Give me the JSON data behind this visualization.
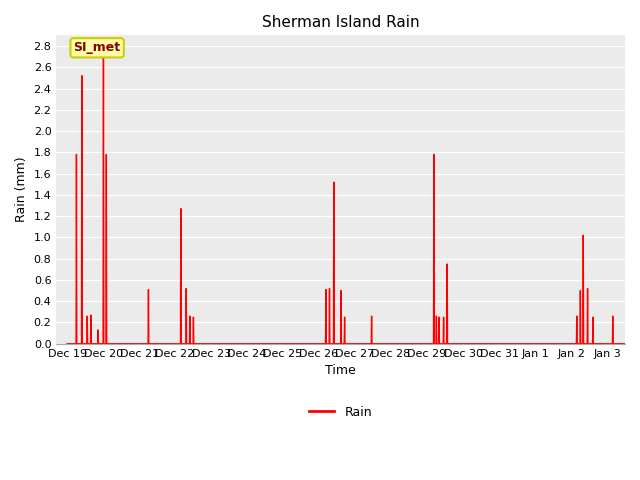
{
  "title": "Sherman Island Rain",
  "xlabel": "Time",
  "ylabel": "Rain (mm)",
  "legend_label": "Rain",
  "annotation_text": "SI_met",
  "line_color": "#FF0000",
  "plot_bg_color": "#EBEBEB",
  "fig_bg_color": "#FFFFFF",
  "ylim": [
    0.0,
    2.9
  ],
  "yticks": [
    0.0,
    0.2,
    0.4,
    0.6,
    0.8,
    1.0,
    1.2,
    1.4,
    1.6,
    1.8,
    2.0,
    2.2,
    2.4,
    2.6,
    2.8
  ],
  "x_tick_labels": [
    "Dec 19",
    "Dec 20",
    "Dec 21",
    "Dec 22",
    "Dec 23",
    "Dec 24",
    "Dec 25",
    "Dec 26",
    "Dec 27",
    "Dec 28",
    "Dec 29",
    "Dec 30",
    "Dec 31",
    "Jan 1",
    "Jan 2",
    "Jan 3"
  ],
  "x_tick_positions": [
    0,
    1,
    2,
    3,
    4,
    5,
    6,
    7,
    8,
    9,
    10,
    11,
    12,
    13,
    14,
    15
  ],
  "title_fontsize": 11,
  "axis_label_fontsize": 9,
  "tick_fontsize": 8,
  "data_points": [
    [
      0.0,
      0.0
    ],
    [
      0.25,
      0.0
    ],
    [
      0.26,
      1.78
    ],
    [
      0.27,
      0.0
    ],
    [
      0.4,
      0.0
    ],
    [
      0.41,
      2.52
    ],
    [
      0.42,
      0.0
    ],
    [
      0.55,
      0.0
    ],
    [
      0.56,
      0.26
    ],
    [
      0.57,
      0.0
    ],
    [
      0.65,
      0.0
    ],
    [
      0.66,
      0.27
    ],
    [
      0.67,
      0.0
    ],
    [
      0.85,
      0.0
    ],
    [
      0.86,
      0.13
    ],
    [
      0.87,
      0.0
    ],
    [
      1.0,
      0.0
    ],
    [
      1.01,
      2.85
    ],
    [
      1.02,
      0.0
    ],
    [
      1.08,
      0.0
    ],
    [
      1.09,
      1.78
    ],
    [
      1.1,
      0.0
    ],
    [
      1.3,
      0.0
    ],
    [
      1.7,
      0.0
    ],
    [
      2.0,
      0.0
    ],
    [
      2.25,
      0.0
    ],
    [
      2.26,
      0.51
    ],
    [
      2.27,
      0.0
    ],
    [
      2.7,
      0.0
    ],
    [
      3.0,
      0.0
    ],
    [
      3.15,
      0.0
    ],
    [
      3.16,
      1.27
    ],
    [
      3.17,
      0.0
    ],
    [
      3.3,
      0.0
    ],
    [
      3.31,
      0.52
    ],
    [
      3.32,
      0.0
    ],
    [
      3.4,
      0.0
    ],
    [
      3.41,
      0.26
    ],
    [
      3.42,
      0.0
    ],
    [
      3.5,
      0.0
    ],
    [
      3.51,
      0.25
    ],
    [
      3.52,
      0.0
    ],
    [
      4.0,
      0.0
    ],
    [
      5.0,
      0.0
    ],
    [
      6.0,
      0.0
    ],
    [
      7.0,
      0.0
    ],
    [
      7.18,
      0.0
    ],
    [
      7.19,
      0.51
    ],
    [
      7.2,
      0.0
    ],
    [
      7.28,
      0.0
    ],
    [
      7.29,
      0.52
    ],
    [
      7.3,
      0.0
    ],
    [
      7.4,
      0.0
    ],
    [
      7.41,
      1.52
    ],
    [
      7.42,
      0.0
    ],
    [
      7.6,
      0.0
    ],
    [
      7.61,
      0.5
    ],
    [
      7.62,
      0.0
    ],
    [
      7.7,
      0.0
    ],
    [
      7.71,
      0.25
    ],
    [
      7.72,
      0.0
    ],
    [
      8.0,
      0.0
    ],
    [
      8.45,
      0.0
    ],
    [
      8.46,
      0.26
    ],
    [
      8.47,
      0.0
    ],
    [
      9.0,
      0.0
    ],
    [
      10.0,
      0.0
    ],
    [
      10.18,
      0.0
    ],
    [
      10.19,
      1.78
    ],
    [
      10.2,
      0.0
    ],
    [
      10.25,
      0.0
    ],
    [
      10.26,
      0.26
    ],
    [
      10.27,
      0.0
    ],
    [
      10.32,
      0.0
    ],
    [
      10.33,
      0.25
    ],
    [
      10.34,
      0.0
    ],
    [
      10.45,
      0.0
    ],
    [
      10.46,
      0.25
    ],
    [
      10.47,
      0.0
    ],
    [
      10.55,
      0.0
    ],
    [
      10.56,
      0.75
    ],
    [
      10.57,
      0.0
    ],
    [
      11.0,
      0.0
    ],
    [
      12.0,
      0.0
    ],
    [
      13.0,
      0.0
    ],
    [
      14.0,
      0.0
    ],
    [
      14.15,
      0.0
    ],
    [
      14.16,
      0.26
    ],
    [
      14.17,
      0.0
    ],
    [
      14.25,
      0.0
    ],
    [
      14.26,
      0.5
    ],
    [
      14.27,
      0.0
    ],
    [
      14.33,
      0.0
    ],
    [
      14.34,
      1.02
    ],
    [
      14.35,
      0.0
    ],
    [
      14.45,
      0.0
    ],
    [
      14.46,
      0.52
    ],
    [
      14.47,
      0.0
    ],
    [
      14.6,
      0.0
    ],
    [
      14.61,
      0.25
    ],
    [
      14.62,
      0.0
    ],
    [
      15.0,
      0.0
    ],
    [
      15.15,
      0.0
    ],
    [
      15.16,
      0.26
    ],
    [
      15.17,
      0.0
    ],
    [
      15.5,
      0.0
    ],
    [
      16.0,
      0.0
    ]
  ]
}
